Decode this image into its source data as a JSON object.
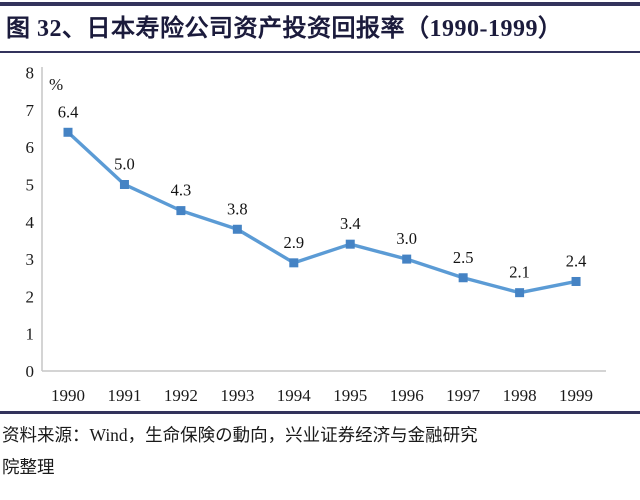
{
  "header": {
    "title": "图 32、日本寿险公司资产投资回报率（1990-1999）"
  },
  "chart_data": {
    "type": "line",
    "title": "日本寿险公司资产投资回报率（1990-1999）",
    "unit_label": "%",
    "categories": [
      "1990",
      "1991",
      "1992",
      "1993",
      "1994",
      "1995",
      "1996",
      "1997",
      "1998",
      "1999"
    ],
    "series": [
      {
        "name": "日本寿险公司资产投资回报率",
        "values": [
          6.4,
          5.0,
          4.3,
          3.8,
          2.9,
          3.4,
          3.0,
          2.5,
          2.1,
          2.4
        ],
        "labels": [
          "6.4",
          "5.0",
          "4.3",
          "3.8",
          "2.9",
          "3.4",
          "3.0",
          "2.5",
          "2.1",
          "2.4"
        ]
      }
    ],
    "ylim": [
      0,
      8
    ],
    "ytick_step": 1,
    "yticks": [
      "0",
      "1",
      "2",
      "3",
      "4",
      "5",
      "6",
      "7",
      "8"
    ],
    "grid": false,
    "legend": "none",
    "data_labels": true,
    "marker": "square",
    "colors": {
      "line": "#5B9BD5",
      "marker": "#4583C4",
      "axis": "#C6C6C6",
      "text": "#1A1A1A"
    }
  },
  "footer": {
    "lines": [
      "资料来源：Wind，生命保険の動向，兴业证券经济与金融研究",
      "院整理"
    ]
  },
  "theme": {
    "rule_color": "#33335C",
    "title_color": "#1B1B3C"
  }
}
